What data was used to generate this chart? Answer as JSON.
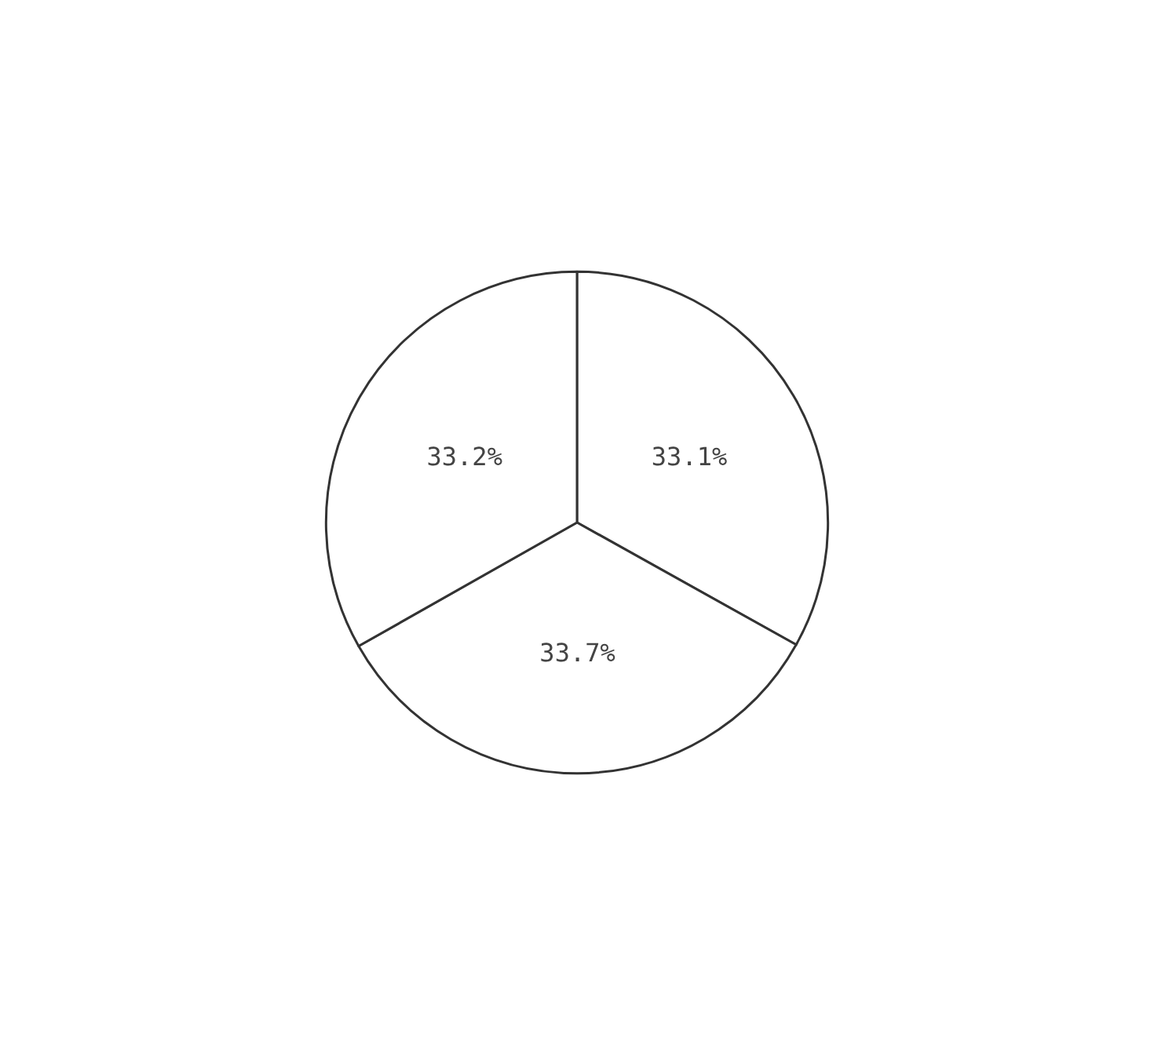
{
  "chart_data": {
    "type": "pie",
    "categories": [
      null,
      null,
      null
    ],
    "values": [
      33.1,
      33.7,
      33.2
    ],
    "colors": [
      "#ffffff",
      "#ffffff",
      "#ffffff"
    ],
    "value_labels": [
      "33.1%",
      "33.7%",
      "33.2%"
    ]
  }
}
